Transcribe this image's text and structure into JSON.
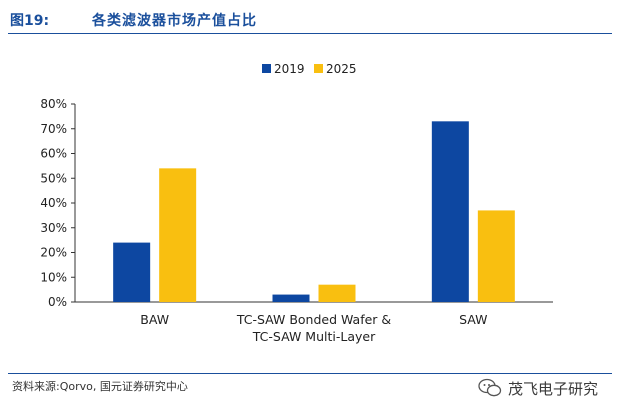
{
  "figure": {
    "number": "图19:",
    "title": "各类滤波器市场产值占比"
  },
  "source": "资料来源:Qorvo, 国元证券研究中心",
  "watermark": {
    "text": "茂飞电子研究",
    "icon": "wechat-icon"
  },
  "chart_data": {
    "type": "bar",
    "categories": [
      [
        "BAW"
      ],
      [
        "TC-SAW Bonded Wafer &",
        "TC-SAW Multi-Layer"
      ],
      [
        "SAW"
      ]
    ],
    "series": [
      {
        "name": "2019",
        "color": "#0d47a1",
        "values": [
          24,
          3,
          73
        ]
      },
      {
        "name": "2025",
        "color": "#f9bf10",
        "values": [
          54,
          7,
          37
        ]
      }
    ],
    "ylim": [
      0,
      80
    ],
    "yticks": [
      "0%",
      "10%",
      "20%",
      "30%",
      "40%",
      "50%",
      "60%",
      "70%",
      "80%"
    ],
    "legend": "top-center",
    "grid": false
  }
}
